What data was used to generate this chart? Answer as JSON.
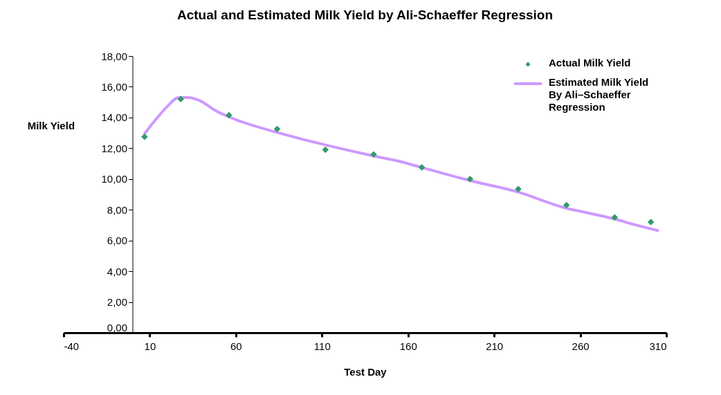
{
  "chart_data": {
    "type": "scatter",
    "title": "Actual and Estimated Milk Yield by Ali-Schaeffer Regression",
    "xlabel": "Test Day",
    "ylabel": "Milk Yield",
    "xlim": [
      -40,
      310
    ],
    "xticks": [
      -40,
      10,
      60,
      110,
      160,
      210,
      260,
      310
    ],
    "ylim": [
      0,
      18
    ],
    "yticks": [
      {
        "value": 0,
        "label": "0,00"
      },
      {
        "value": 2,
        "label": "2,00"
      },
      {
        "value": 4,
        "label": "4,00"
      },
      {
        "value": 6,
        "label": "6,00"
      },
      {
        "value": 8,
        "label": "8,00"
      },
      {
        "value": 10,
        "label": "10,00"
      },
      {
        "value": 12,
        "label": "12,00"
      },
      {
        "value": 14,
        "label": "14,00"
      },
      {
        "value": 16,
        "label": "16,00"
      },
      {
        "value": 18,
        "label": "18,00"
      }
    ],
    "grid": false,
    "legend": "top right",
    "series": [
      {
        "name": "Actual Milk Yield",
        "marker": "diamond",
        "color": "#339966",
        "x": [
          7,
          28,
          56,
          84,
          112,
          140,
          168,
          196,
          224,
          252,
          280,
          301
        ],
        "values": [
          12.75,
          15.2,
          14.15,
          13.25,
          11.9,
          11.6,
          10.75,
          10.0,
          9.35,
          8.3,
          7.5,
          7.2
        ]
      },
      {
        "name": "Estimated Milk Yield By Ali–Schaeffer Regression",
        "type": "line",
        "marker": "none",
        "color": "#cc99ff",
        "line_style": "solid",
        "x": [
          7,
          13,
          20,
          27,
          32,
          38,
          49,
          58,
          85,
          109,
          132,
          140,
          155,
          168,
          196,
          224,
          252,
          262,
          280,
          291,
          305
        ],
        "values": [
          12.95,
          13.8,
          14.7,
          15.3,
          15.3,
          15.15,
          14.4,
          13.95,
          13.0,
          12.3,
          11.7,
          11.5,
          11.15,
          10.75,
          9.9,
          9.15,
          8.1,
          7.85,
          7.4,
          7.05,
          6.65
        ]
      }
    ]
  }
}
